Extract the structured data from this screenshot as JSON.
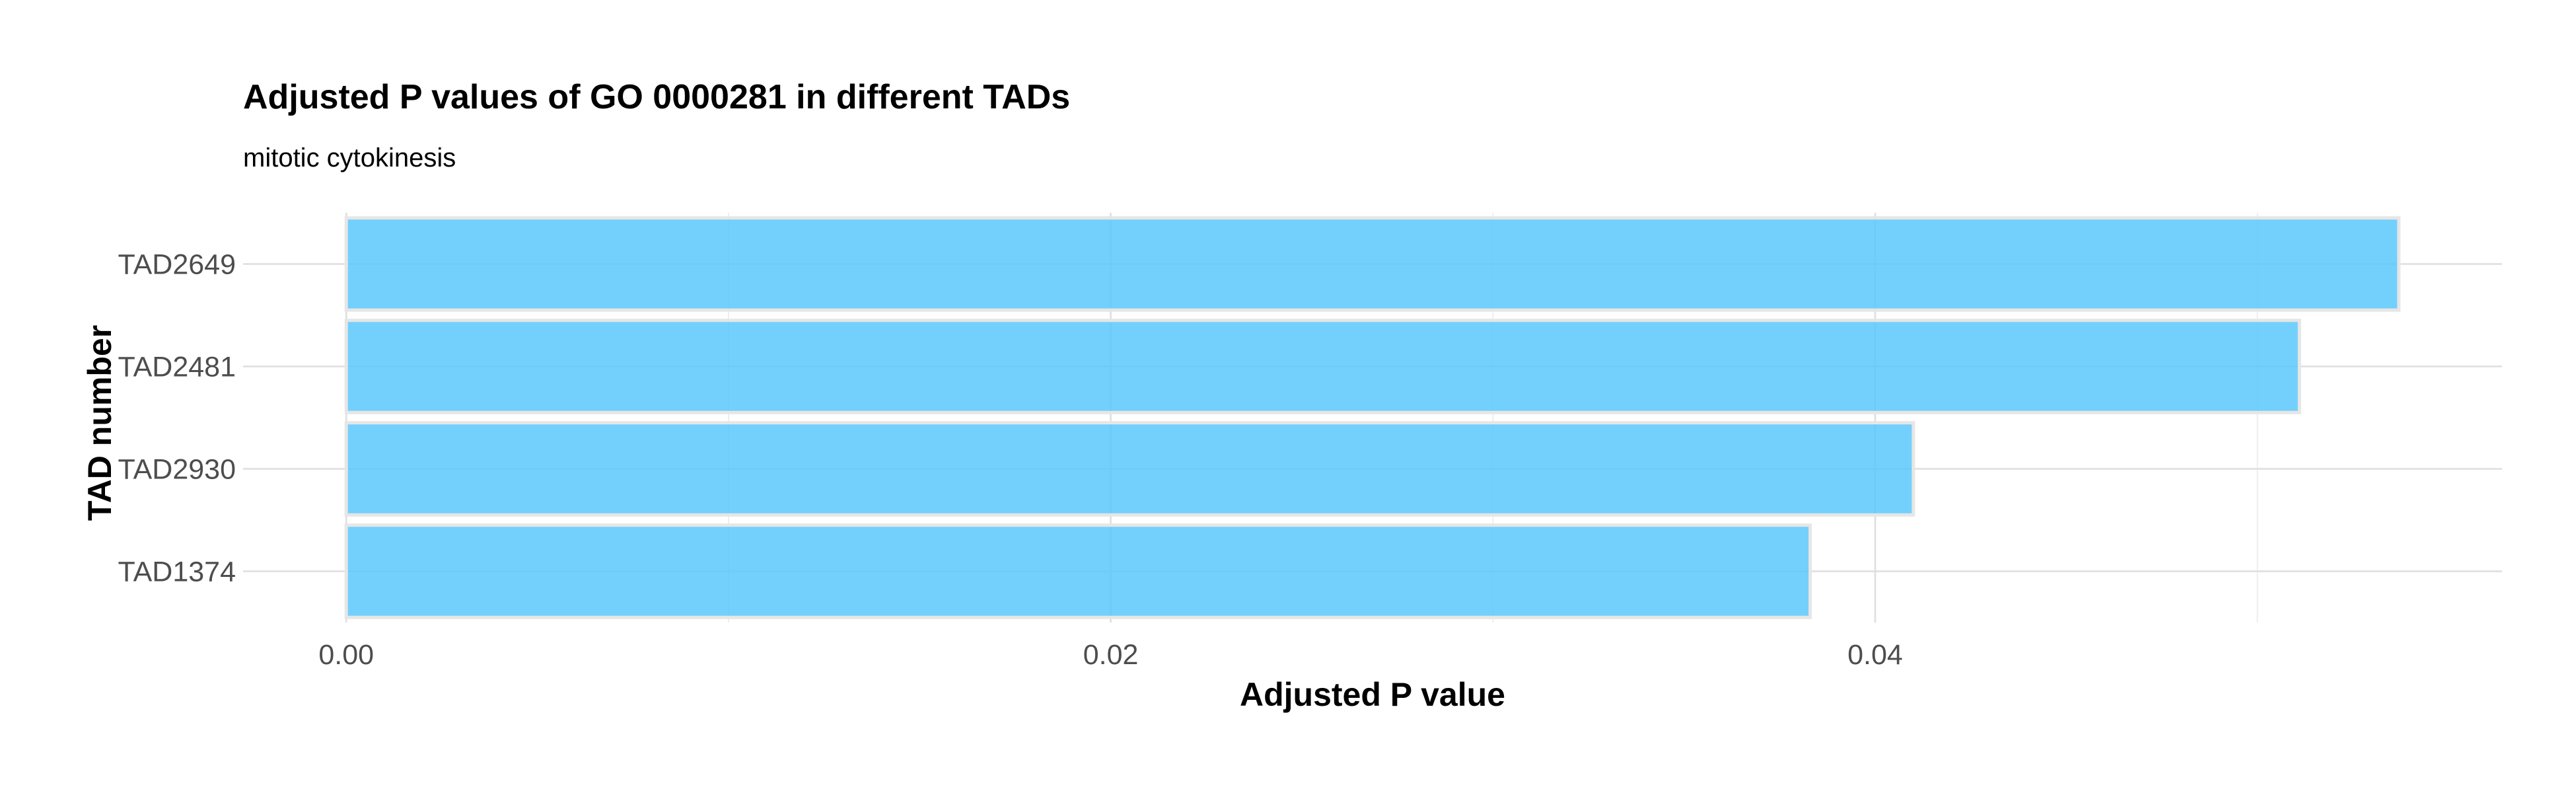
{
  "chart_data": {
    "type": "bar",
    "orientation": "horizontal",
    "title": "Adjusted P values of GO 0000281 in different TADs",
    "subtitle": "mitotic cytokinesis",
    "xlabel": "Adjusted P value",
    "ylabel": "TAD number",
    "categories": [
      "TAD2649",
      "TAD2481",
      "TAD2930",
      "TAD1374"
    ],
    "values": [
      0.0537,
      0.0511,
      0.041,
      0.0383
    ],
    "xlim": [
      -0.0027,
      0.0564
    ],
    "x_ticks": [
      0.0,
      0.02,
      0.04
    ],
    "x_tick_labels": [
      "0.00",
      "0.02",
      "0.04"
    ],
    "x_minor_ticks": [
      0.01,
      0.03,
      0.05
    ],
    "grid": true,
    "legend": "none",
    "bar_color": "#5bc8fb",
    "bar_outline_color": "#e6e6e6",
    "bar_opacity": 0.85
  }
}
